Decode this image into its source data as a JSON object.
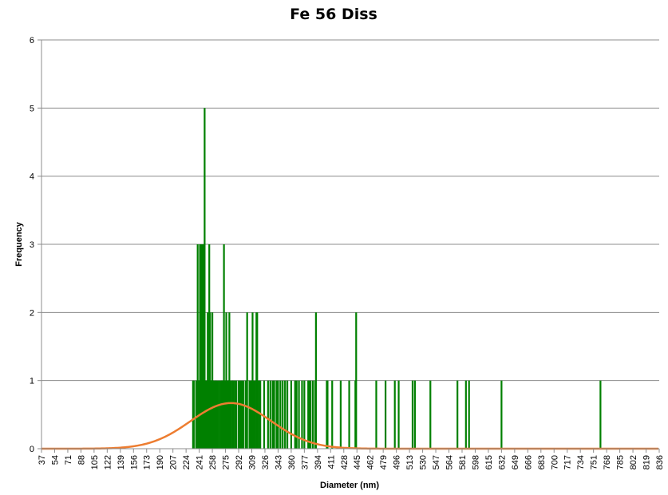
{
  "chart_data": {
    "type": "bar",
    "title": "Fe 56  Diss",
    "xlabel": "Diameter (nm)",
    "ylabel": "Frequency",
    "ylim": [
      0,
      6
    ],
    "yticks": [
      0,
      1,
      2,
      3,
      4,
      5,
      6
    ],
    "x_tick_labels": [
      "37",
      "54",
      "71",
      "88",
      "105",
      "122",
      "139",
      "156",
      "173",
      "190",
      "207",
      "224",
      "241",
      "258",
      "275",
      "292",
      "309",
      "326",
      "343",
      "360",
      "377",
      "394",
      "411",
      "428",
      "445",
      "462",
      "479",
      "496",
      "513",
      "530",
      "547",
      "564",
      "581",
      "598",
      "615",
      "632",
      "649",
      "666",
      "683",
      "700",
      "717",
      "734",
      "751",
      "768",
      "785",
      "802",
      "819",
      "836"
    ],
    "grid": true,
    "bar_color": "#008000",
    "fit_color": "#ED7D31",
    "series": [
      {
        "values_by_diameter": [
          [
            233,
            1
          ],
          [
            234,
            1
          ],
          [
            237,
            1
          ],
          [
            238,
            1
          ],
          [
            239,
            3
          ],
          [
            240,
            1
          ],
          [
            241,
            1
          ],
          [
            242,
            3
          ],
          [
            243,
            1
          ],
          [
            244,
            3
          ],
          [
            245,
            1
          ],
          [
            246,
            3
          ],
          [
            247,
            1
          ],
          [
            248,
            5
          ],
          [
            249,
            1
          ],
          [
            250,
            1
          ],
          [
            251,
            1
          ],
          [
            252,
            2
          ],
          [
            253,
            1
          ],
          [
            254,
            3
          ],
          [
            255,
            2
          ],
          [
            256,
            1
          ],
          [
            257,
            1
          ],
          [
            258,
            2
          ],
          [
            259,
            1
          ],
          [
            260,
            1
          ],
          [
            262,
            1
          ],
          [
            263,
            1
          ],
          [
            265,
            1
          ],
          [
            267,
            1
          ],
          [
            269,
            1
          ],
          [
            270,
            1
          ],
          [
            271,
            1
          ],
          [
            272,
            1
          ],
          [
            273,
            3
          ],
          [
            274,
            1
          ],
          [
            276,
            2
          ],
          [
            278,
            1
          ],
          [
            279,
            1
          ],
          [
            280,
            2
          ],
          [
            282,
            1
          ],
          [
            284,
            1
          ],
          [
            285,
            1
          ],
          [
            287,
            1
          ],
          [
            289,
            1
          ],
          [
            292,
            1
          ],
          [
            294,
            1
          ],
          [
            296,
            1
          ],
          [
            298,
            1
          ],
          [
            301,
            1
          ],
          [
            303,
            2
          ],
          [
            306,
            1
          ],
          [
            308,
            1
          ],
          [
            310,
            2
          ],
          [
            311,
            1
          ],
          [
            313,
            1
          ],
          [
            315,
            2
          ],
          [
            316,
            2
          ],
          [
            317,
            1
          ],
          [
            319,
            1
          ],
          [
            320,
            1
          ],
          [
            325,
            1
          ],
          [
            330,
            1
          ],
          [
            333,
            1
          ],
          [
            336,
            1
          ],
          [
            338,
            1
          ],
          [
            341,
            1
          ],
          [
            343,
            1
          ],
          [
            346,
            1
          ],
          [
            349,
            1
          ],
          [
            352,
            1
          ],
          [
            355,
            1
          ],
          [
            360,
            1
          ],
          [
            365,
            1
          ],
          [
            367,
            1
          ],
          [
            370,
            1
          ],
          [
            374,
            1
          ],
          [
            377,
            1
          ],
          [
            382,
            1
          ],
          [
            383,
            1
          ],
          [
            385,
            1
          ],
          [
            388,
            1
          ],
          [
            391,
            1
          ],
          [
            392,
            2
          ],
          [
            406,
            1
          ],
          [
            407,
            1
          ],
          [
            413,
            1
          ],
          [
            424,
            1
          ],
          [
            435,
            1
          ],
          [
            443,
            1
          ],
          [
            444,
            2
          ],
          [
            470,
            1
          ],
          [
            482,
            1
          ],
          [
            494,
            1
          ],
          [
            499,
            1
          ],
          [
            517,
            1
          ],
          [
            520,
            1
          ],
          [
            540,
            1
          ],
          [
            575,
            1
          ],
          [
            586,
            1
          ],
          [
            590,
            1
          ],
          [
            632,
            1
          ],
          [
            760,
            1
          ]
        ]
      }
    ],
    "fit_curve": {
      "type": "normal",
      "mean": 282,
      "sd": 52,
      "peak": 0.67
    }
  }
}
